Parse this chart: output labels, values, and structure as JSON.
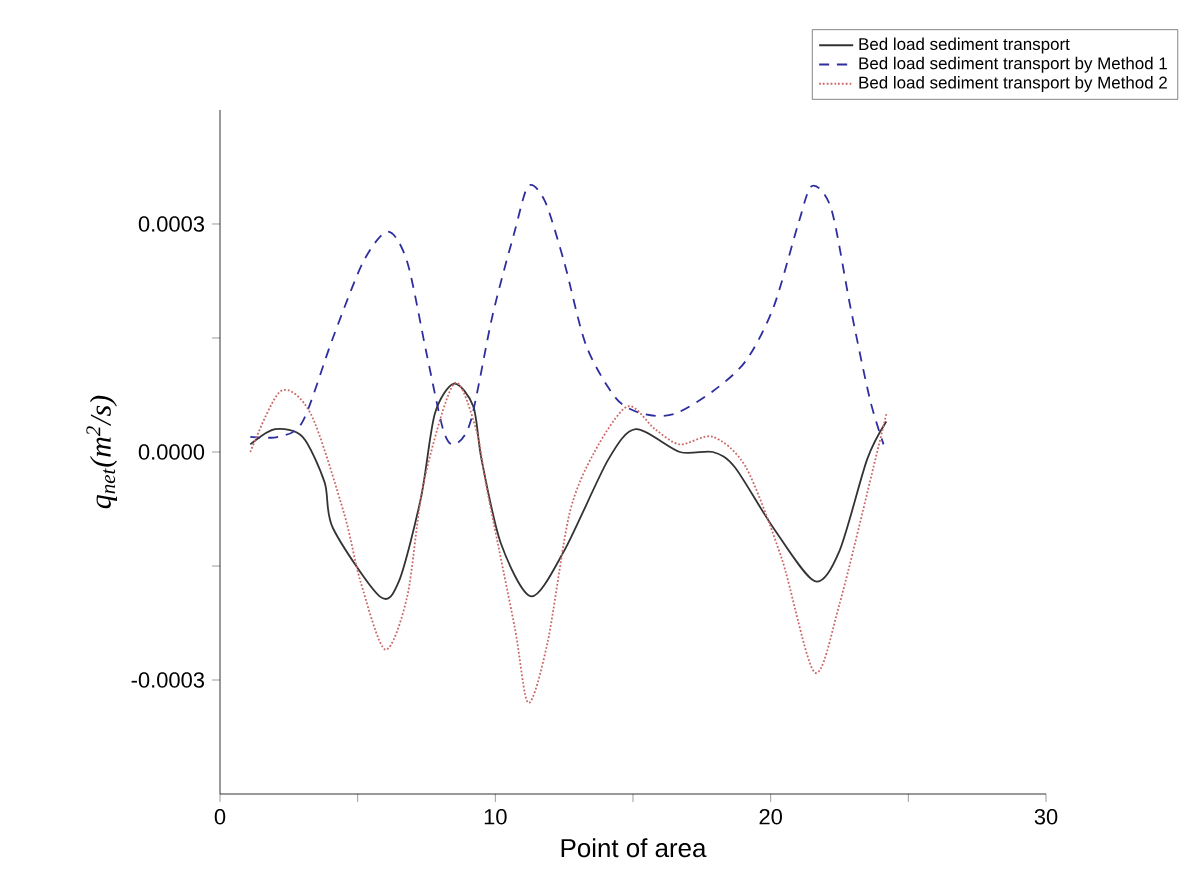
{
  "chart_data": {
    "type": "line",
    "xlabel": "Point of area",
    "ylabel": "q$_{net}$(m$^{2}$/s)",
    "xlim": [
      0,
      30
    ],
    "xticks": [
      0,
      {
        "value": 5,
        "label": null
      },
      10,
      {
        "value": 15,
        "label": null
      },
      20,
      {
        "value": 25,
        "label": null
      },
      30
    ],
    "ylim": [
      -0.00045,
      0.00045
    ],
    "yticks": [
      {
        "value": -0.0003,
        "label": "-0.0003"
      },
      {
        "value": -0.00015,
        "label": null
      },
      {
        "value": 0,
        "label": "0.0000"
      },
      {
        "value": 0.00015,
        "label": null
      },
      {
        "value": 0.0003,
        "label": "0.0003"
      }
    ],
    "legend": "top right",
    "grid": false,
    "series": [
      {
        "name": "Bed load sediment transport",
        "color": "#333333",
        "line_style": "solid",
        "x": [
          1.1,
          2.0,
          3.0,
          3.8,
          4.1,
          5.8,
          6.5,
          7.3,
          7.8,
          8.5,
          9.2,
          9.5,
          10.2,
          11.3,
          12.5,
          14.1,
          15.1,
          16.7,
          17.9,
          18.7,
          20.1,
          21.6,
          22.5,
          23.5,
          24.2
        ],
        "values": [
          1e-05,
          3e-05,
          2e-05,
          -4e-05,
          -0.0001,
          -0.00019,
          -0.00017,
          -6e-05,
          5e-05,
          9e-05,
          6e-05,
          -1e-05,
          -0.00012,
          -0.00019,
          -0.00013,
          -1e-05,
          3e-05,
          0,
          0,
          -2e-05,
          -0.0001,
          -0.00017,
          -0.00013,
          -1e-05,
          4e-05
        ]
      },
      {
        "name": "Bed load sediment transport by Method 1",
        "color": "#2e2e9e",
        "line_style": "dashed",
        "x": [
          1.1,
          2.1,
          3.0,
          4.1,
          5.2,
          6.1,
          6.8,
          7.5,
          8.1,
          8.5,
          9.1,
          9.9,
          10.7,
          11.2,
          11.8,
          12.5,
          13.3,
          14.4,
          15.4,
          16.5,
          17.9,
          19.1,
          20.1,
          21.0,
          21.5,
          22.2,
          22.9,
          23.6,
          24.1
        ],
        "values": [
          2e-05,
          2e-05,
          4e-05,
          0.00015,
          0.00025,
          0.00029,
          0.00025,
          0.00013,
          3e-05,
          1e-05,
          4e-05,
          0.00018,
          0.00029,
          0.00035,
          0.00033,
          0.00025,
          0.00014,
          7e-05,
          5e-05,
          5e-05,
          8e-05,
          0.00012,
          0.00019,
          0.0003,
          0.00035,
          0.00032,
          0.00019,
          7e-05,
          1e-05
        ]
      },
      {
        "name": "Bed load sediment transport by Method 2",
        "color": "#cc6666",
        "line_style": "dotted",
        "x": [
          1.1,
          2.2,
          3.3,
          4.5,
          5.1,
          6.0,
          6.8,
          7.4,
          8.5,
          9.3,
          9.7,
          10.7,
          11.2,
          11.9,
          12.7,
          13.6,
          14.8,
          15.8,
          16.7,
          17.9,
          19.1,
          20.4,
          21.6,
          22.5,
          23.8,
          24.2
        ],
        "values": [
          0,
          8e-05,
          5e-05,
          -8e-05,
          -0.00017,
          -0.00026,
          -0.00019,
          -4e-05,
          9e-05,
          3e-05,
          -5e-05,
          -0.00023,
          -0.00033,
          -0.00025,
          -8e-05,
          0,
          6e-05,
          3e-05,
          1e-05,
          2e-05,
          -2e-05,
          -0.00014,
          -0.00029,
          -0.0002,
          -1e-05,
          5e-05
        ]
      }
    ]
  }
}
